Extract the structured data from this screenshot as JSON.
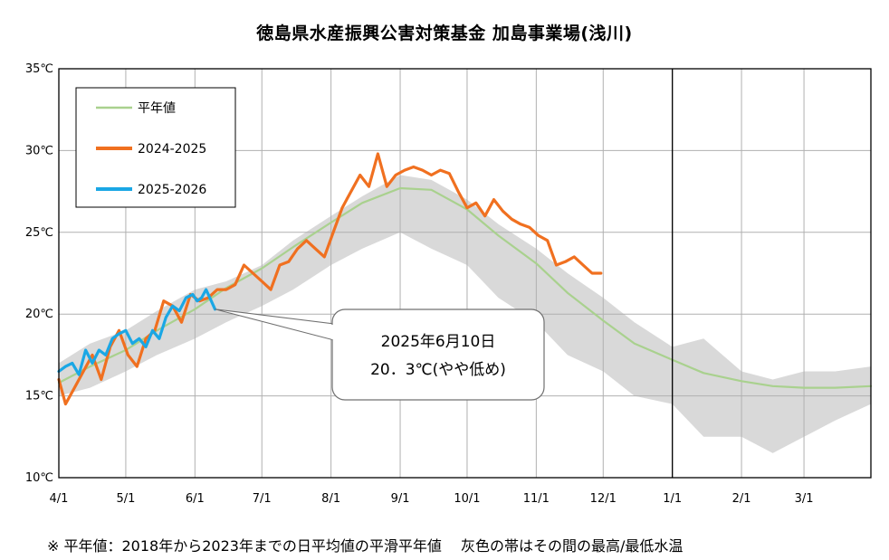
{
  "chart_data": {
    "type": "line",
    "title": "徳島県水産振興公害対策基金 加島事業場(浅川)",
    "footnote": "※ 平年値：2018年から2023年までの日平均値の平滑平年値　 灰色の帯はその間の最高/最低水温",
    "xlabel": "",
    "ylabel": "",
    "ylim": [
      10,
      35
    ],
    "y_ticks": [
      10,
      15,
      20,
      25,
      30,
      35
    ],
    "y_tick_labels": [
      "10℃",
      "15℃",
      "20℃",
      "25℃",
      "30℃",
      "35℃"
    ],
    "x_start": "4/1",
    "x_end": "3/31",
    "x_ticks": [
      {
        "label": "4/1",
        "day": 0
      },
      {
        "label": "5/1",
        "day": 30
      },
      {
        "label": "6/1",
        "day": 61
      },
      {
        "label": "7/1",
        "day": 91
      },
      {
        "label": "8/1",
        "day": 122
      },
      {
        "label": "9/1",
        "day": 153
      },
      {
        "label": "10/1",
        "day": 183
      },
      {
        "label": "11/1",
        "day": 214
      },
      {
        "label": "12/1",
        "day": 244
      },
      {
        "label": "1/1",
        "day": 275
      },
      {
        "label": "2/1",
        "day": 306
      },
      {
        "label": "3/1",
        "day": 334
      }
    ],
    "x_max_day": 364,
    "grid": true,
    "year_divider_day": 275,
    "legend_position": "top-left",
    "band": {
      "name": "灰色の帯",
      "color": "#d9d9d9",
      "x": [
        "4/1",
        "4/15",
        "5/1",
        "5/15",
        "6/1",
        "6/15",
        "7/1",
        "7/15",
        "8/1",
        "8/15",
        "9/1",
        "9/15",
        "10/1",
        "10/15",
        "11/1",
        "11/15",
        "12/1",
        "12/15",
        "1/1",
        "1/15",
        "2/1",
        "2/15",
        "3/1",
        "3/15",
        "3/31"
      ],
      "upper": [
        17.0,
        18.2,
        19.0,
        20.2,
        21.5,
        22.0,
        23.0,
        24.5,
        26.0,
        27.2,
        28.5,
        28.2,
        27.0,
        25.5,
        24.0,
        22.5,
        21.0,
        19.5,
        18.0,
        18.5,
        16.5,
        16.0,
        16.5,
        16.5,
        16.8
      ],
      "lower": [
        15.0,
        15.5,
        16.5,
        17.5,
        18.5,
        19.5,
        20.5,
        21.5,
        23.0,
        24.0,
        25.0,
        24.0,
        23.0,
        21.0,
        19.5,
        17.5,
        16.5,
        15.0,
        14.5,
        12.5,
        12.5,
        11.5,
        12.5,
        13.5,
        14.5
      ]
    },
    "series": [
      {
        "name": "平年値",
        "color": "#a9d18e",
        "x": [
          "4/1",
          "4/15",
          "5/1",
          "5/15",
          "6/1",
          "6/15",
          "7/1",
          "7/15",
          "8/1",
          "8/15",
          "9/1",
          "9/15",
          "10/1",
          "10/15",
          "11/1",
          "11/15",
          "12/1",
          "12/15",
          "1/1",
          "1/15",
          "2/1",
          "2/15",
          "3/1",
          "3/15",
          "3/31"
        ],
        "y": [
          15.8,
          16.8,
          17.8,
          19.0,
          20.3,
          21.6,
          22.8,
          24.1,
          25.6,
          26.8,
          27.7,
          27.6,
          26.4,
          24.8,
          23.1,
          21.3,
          19.6,
          18.2,
          17.2,
          16.4,
          15.9,
          15.6,
          15.5,
          15.5,
          15.6
        ]
      },
      {
        "name": "2024-2025",
        "color": "#f07020",
        "x": [
          "4/1",
          "4/4",
          "4/8",
          "4/12",
          "4/16",
          "4/20",
          "4/24",
          "4/28",
          "5/2",
          "5/6",
          "5/10",
          "5/14",
          "5/18",
          "5/22",
          "5/26",
          "5/30",
          "6/3",
          "6/7",
          "6/11",
          "6/15",
          "6/19",
          "6/23",
          "6/27",
          "7/1",
          "7/5",
          "7/9",
          "7/13",
          "7/17",
          "7/21",
          "7/25",
          "7/29",
          "8/2",
          "8/6",
          "8/10",
          "8/14",
          "8/18",
          "8/22",
          "8/26",
          "8/30",
          "9/3",
          "9/7",
          "9/11",
          "9/15",
          "9/19",
          "9/23",
          "9/27",
          "10/1",
          "10/5",
          "10/9",
          "10/13",
          "10/17",
          "10/21",
          "10/25",
          "10/29",
          "11/2",
          "11/6",
          "11/10",
          "11/14",
          "11/18",
          "11/22",
          "11/26",
          "11/30"
        ],
        "y": [
          16.0,
          14.5,
          15.5,
          16.5,
          17.5,
          16.0,
          18.0,
          19.0,
          17.5,
          16.8,
          18.5,
          19.0,
          20.8,
          20.5,
          19.5,
          21.2,
          20.8,
          21.0,
          21.5,
          21.5,
          21.8,
          23.0,
          22.5,
          22.0,
          21.5,
          23.0,
          23.2,
          24.0,
          24.5,
          24.0,
          23.5,
          25.0,
          26.5,
          27.5,
          28.5,
          27.8,
          29.8,
          27.8,
          28.5,
          28.8,
          29.0,
          28.8,
          28.5,
          28.8,
          28.6,
          27.5,
          26.5,
          26.8,
          26.0,
          27.0,
          26.3,
          25.8,
          25.5,
          25.3,
          24.8,
          24.5,
          23.0,
          23.2,
          23.5,
          23.0,
          22.5,
          22.5
        ]
      },
      {
        "name": "2025-2026",
        "color": "#1aa7e5",
        "x": [
          "4/1",
          "4/4",
          "4/7",
          "4/10",
          "4/13",
          "4/16",
          "4/19",
          "4/22",
          "4/25",
          "4/28",
          "5/1",
          "5/4",
          "5/7",
          "5/10",
          "5/13",
          "5/16",
          "5/19",
          "5/22",
          "5/25",
          "5/28",
          "5/31",
          "6/2",
          "6/4",
          "6/6",
          "6/8",
          "6/10"
        ],
        "y": [
          16.5,
          16.8,
          17.0,
          16.3,
          17.8,
          17.0,
          17.8,
          17.5,
          18.5,
          18.8,
          19.0,
          18.2,
          18.5,
          18.0,
          19.0,
          18.5,
          19.8,
          20.5,
          20.2,
          21.0,
          21.2,
          20.8,
          21.0,
          21.5,
          20.9,
          20.3
        ]
      }
    ],
    "callout": {
      "line1": "2025年6月10日",
      "line2": "20．3℃(やや低め)",
      "target_day": 70,
      "target_value": 20.3
    }
  }
}
